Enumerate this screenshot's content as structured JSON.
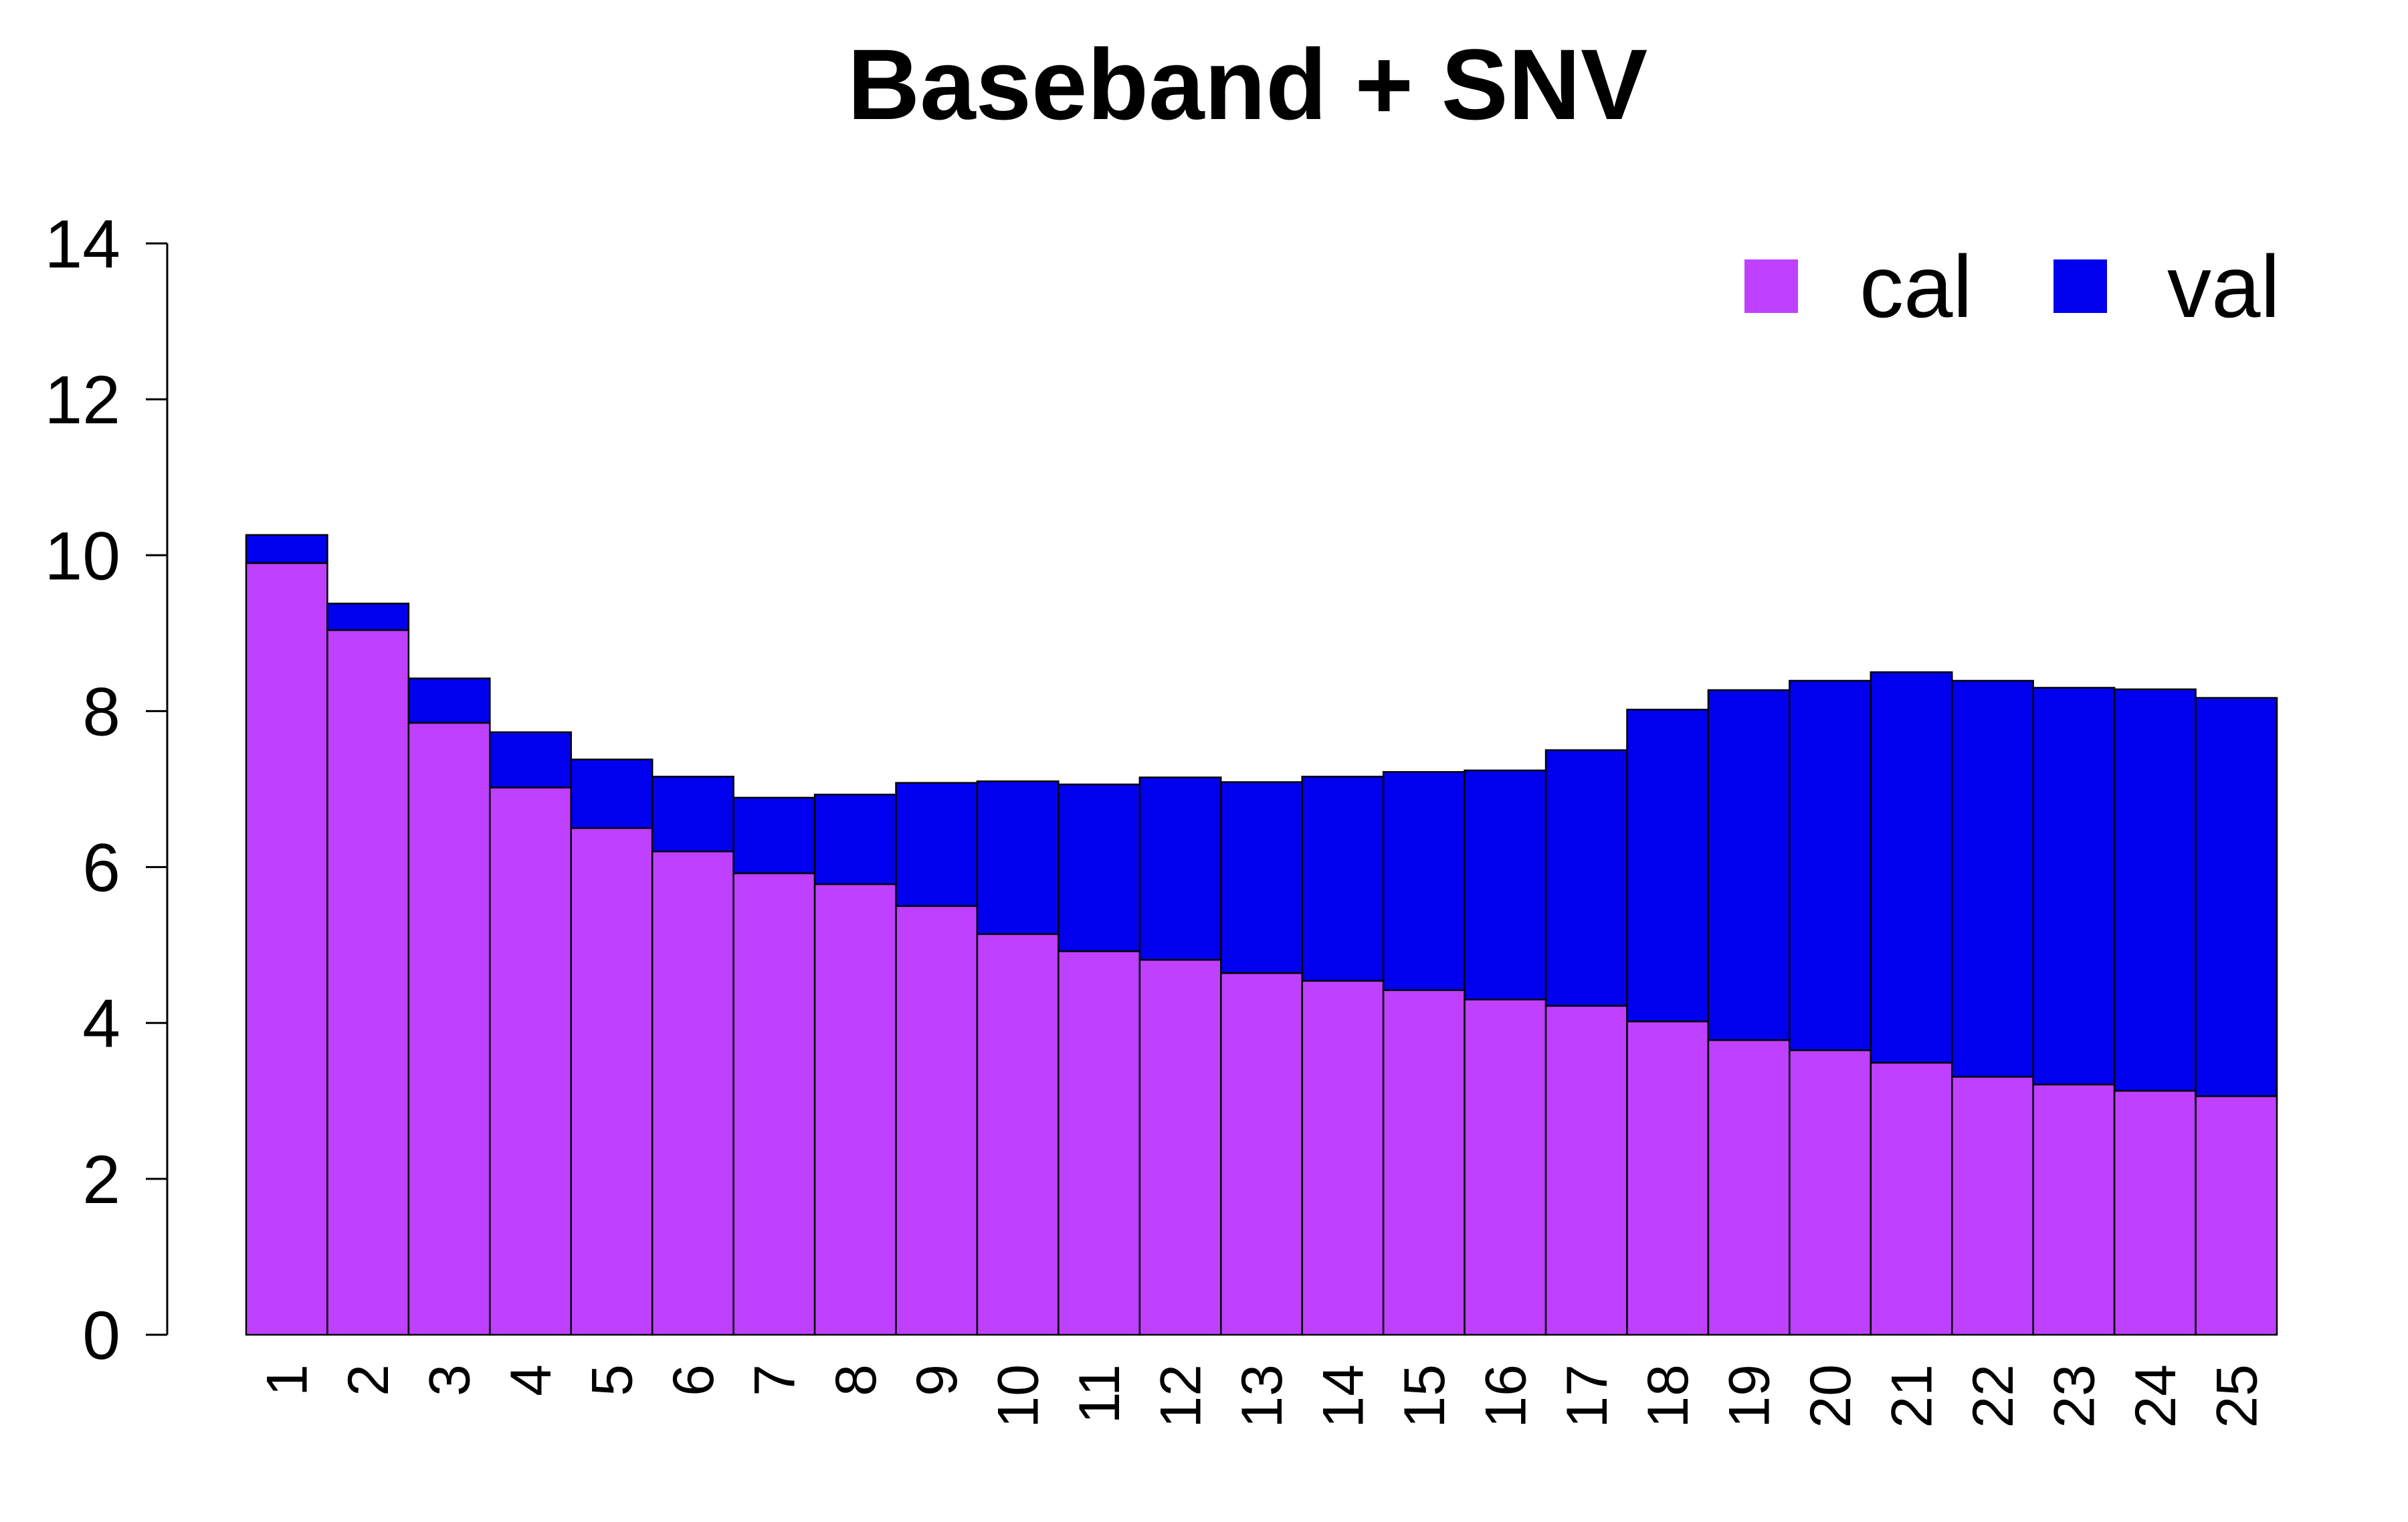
{
  "chart_data": {
    "type": "bar",
    "stacked": true,
    "title": "Baseband + SNV",
    "xlabel": "",
    "ylabel": "",
    "ylim": [
      0,
      14
    ],
    "yticks": [
      0,
      2,
      4,
      6,
      8,
      10,
      12,
      14
    ],
    "categories": [
      "1",
      "2",
      "3",
      "4",
      "5",
      "6",
      "7",
      "8",
      "9",
      "10",
      "11",
      "12",
      "13",
      "14",
      "15",
      "16",
      "17",
      "18",
      "19",
      "20",
      "21",
      "22",
      "23",
      "24",
      "25"
    ],
    "series": [
      {
        "name": "cal",
        "color": "#BF40FF",
        "values": [
          9.9,
          9.04,
          7.85,
          7.02,
          6.5,
          6.2,
          5.92,
          5.78,
          5.5,
          5.14,
          4.92,
          4.81,
          4.64,
          4.54,
          4.42,
          4.3,
          4.22,
          4.02,
          3.78,
          3.65,
          3.49,
          3.31,
          3.21,
          3.13,
          3.06
        ]
      },
      {
        "name": "val",
        "color": "#0000EE",
        "values": [
          0.36,
          0.34,
          0.57,
          0.71,
          0.88,
          0.96,
          0.97,
          1.15,
          1.58,
          1.96,
          2.14,
          2.34,
          2.45,
          2.62,
          2.8,
          2.94,
          3.28,
          4.0,
          4.49,
          4.74,
          5.01,
          5.08,
          5.09,
          5.15,
          5.11
        ]
      }
    ],
    "legend": "top-right",
    "grid": false,
    "bar_border_color": "#000000"
  }
}
